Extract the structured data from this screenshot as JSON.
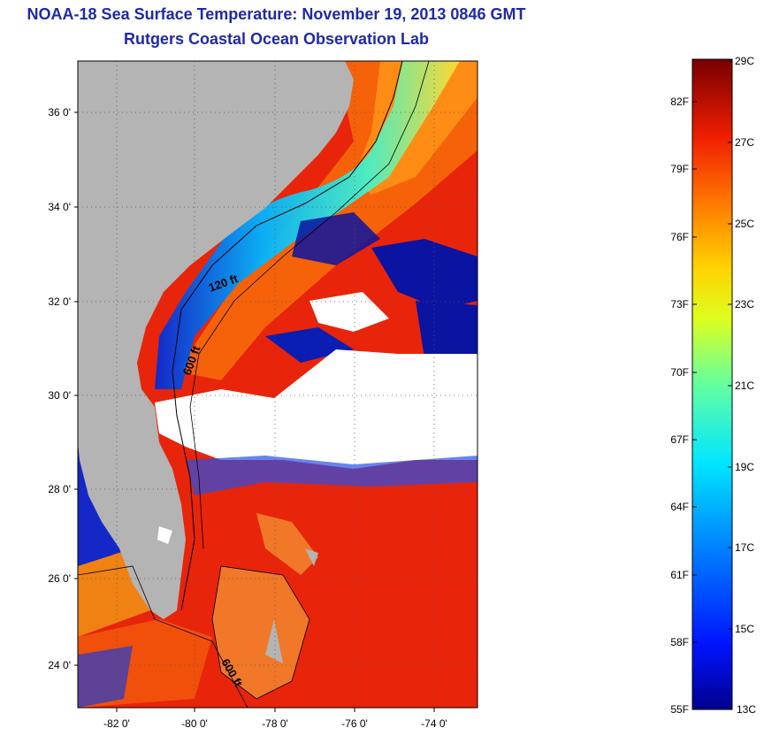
{
  "title": "NOAA-18 Sea Surface Temperature:  November 19, 2013 0846 GMT",
  "subtitle": "Rutgers Coastal Ocean Observation Lab",
  "map": {
    "lat_labels": [
      "36 0'",
      "34 0'",
      "32 0'",
      "30 0'",
      "28 0'",
      "26 0'",
      "24 0'"
    ],
    "lon_labels": [
      "-82 0'",
      "-80 0'",
      "-78 0'",
      "-76 0'",
      "-74 0'"
    ],
    "contour_labels": [
      "120 ft",
      "600 ft",
      "600 ft"
    ],
    "colors": {
      "land": "#b4b4b4",
      "cloud": "#ffffff",
      "cold": "#0a14a0",
      "cool": "#00b4ff",
      "mid": "#ffd21e",
      "warm": "#ff5a00",
      "hot": "#e81400"
    }
  },
  "colorbar": {
    "celsius_labels": [
      "29C",
      "27C",
      "25C",
      "23C",
      "21C",
      "19C",
      "17C",
      "15C",
      "13C"
    ],
    "fahrenheit_labels": [
      "82F",
      "79F",
      "76F",
      "73F",
      "70F",
      "67F",
      "64F",
      "61F",
      "58F",
      "55F"
    ],
    "range_c": [
      13,
      29
    ],
    "range_f": [
      55,
      84.2
    ]
  }
}
